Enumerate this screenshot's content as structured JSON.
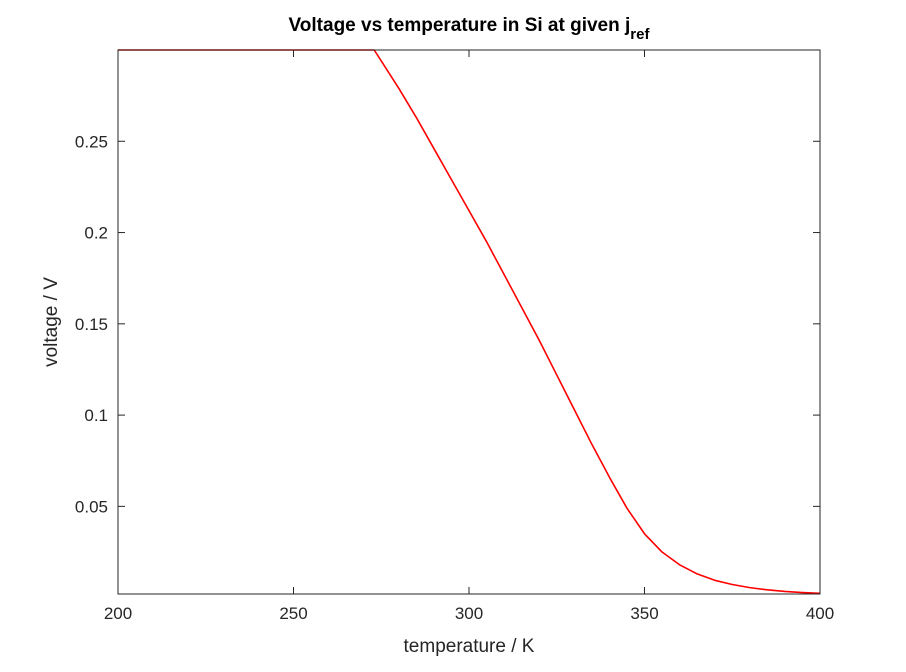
{
  "chart_data": {
    "type": "line",
    "title": "Voltage vs temperature in Si at given j",
    "title_subscript": "ref",
    "xlabel": "temperature / K",
    "ylabel": "voltage / V",
    "xlim": [
      200,
      400
    ],
    "ylim": [
      0.002,
      0.3
    ],
    "xticks": [
      200,
      250,
      300,
      350,
      400
    ],
    "xtick_labels": [
      "200",
      "250",
      "300",
      "350",
      "400"
    ],
    "yticks": [
      0.05,
      0.1,
      0.15,
      0.2,
      0.25
    ],
    "ytick_labels": [
      "0.05",
      "0.1",
      "0.15",
      "0.2",
      "0.25"
    ],
    "grid": false,
    "legend": false,
    "series": [
      {
        "color": "#ff0000",
        "x": [
          200,
          210,
          220,
          230,
          240,
          250,
          260,
          270,
          273,
          275,
          280,
          285,
          290,
          295,
          300,
          305,
          310,
          315,
          320,
          325,
          330,
          335,
          340,
          345,
          350,
          355,
          360,
          365,
          370,
          375,
          380,
          385,
          390,
          395,
          400
        ],
        "y": [
          0.3,
          0.3,
          0.3,
          0.3,
          0.3,
          0.3,
          0.3,
          0.3,
          0.3,
          0.294,
          0.279,
          0.263,
          0.246,
          0.229,
          0.212,
          0.195,
          0.177,
          0.159,
          0.141,
          0.122,
          0.103,
          0.084,
          0.066,
          0.049,
          0.035,
          0.025,
          0.018,
          0.013,
          0.0095,
          0.0072,
          0.0055,
          0.0043,
          0.0034,
          0.0028,
          0.0024
        ]
      }
    ]
  }
}
